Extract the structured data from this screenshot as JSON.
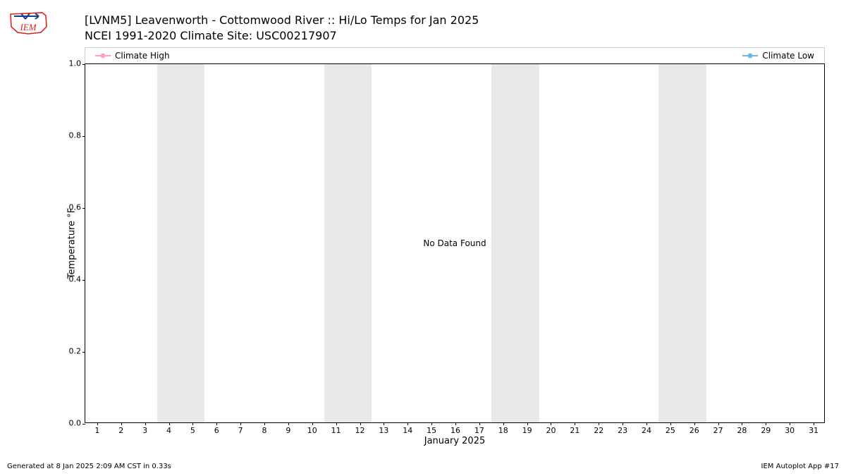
{
  "logo": {
    "label": "IEM",
    "outline_color": "#d9261c",
    "symbol_color": "#1a3c8c"
  },
  "title": {
    "line1": "[LVNM5] Leavenworth - Cottomwood River :: Hi/Lo Temps for Jan 2025",
    "line2": "NCEI 1991-2020 Climate Site: USC00217907",
    "fontsize": 16
  },
  "legend": {
    "items": [
      {
        "label": "Climate High",
        "color": "#f5a6b8"
      },
      {
        "label": "Climate Low",
        "color": "#6fb7e0"
      }
    ],
    "fontsize": 12
  },
  "chart": {
    "type": "line",
    "series": [],
    "center_message": "No Data Found",
    "background_color": "#ffffff",
    "weekend_band_color": "#e9e9e9",
    "frame_color": "#000000",
    "x": {
      "label": "January 2025",
      "ticks": [
        1,
        2,
        3,
        4,
        5,
        6,
        7,
        8,
        9,
        10,
        11,
        12,
        13,
        14,
        15,
        16,
        17,
        18,
        19,
        20,
        21,
        22,
        23,
        24,
        25,
        26,
        27,
        28,
        29,
        30,
        31
      ],
      "lim": [
        0.5,
        31.5
      ],
      "weekend_bands": [
        {
          "start": 3.5,
          "end": 5.5
        },
        {
          "start": 10.5,
          "end": 12.5
        },
        {
          "start": 17.5,
          "end": 19.5
        },
        {
          "start": 24.5,
          "end": 26.5
        }
      ]
    },
    "y": {
      "label": "Temperature °F",
      "ticks": [
        0.0,
        0.2,
        0.4,
        0.6,
        0.8,
        1.0
      ],
      "lim": [
        0.0,
        1.0
      ]
    },
    "label_fontsize": 13,
    "tick_fontsize": 11
  },
  "footer": {
    "left": "Generated at 8 Jan 2025 2:09 AM CST in 0.33s",
    "right": "IEM Autoplot App #17",
    "fontsize": 10
  }
}
